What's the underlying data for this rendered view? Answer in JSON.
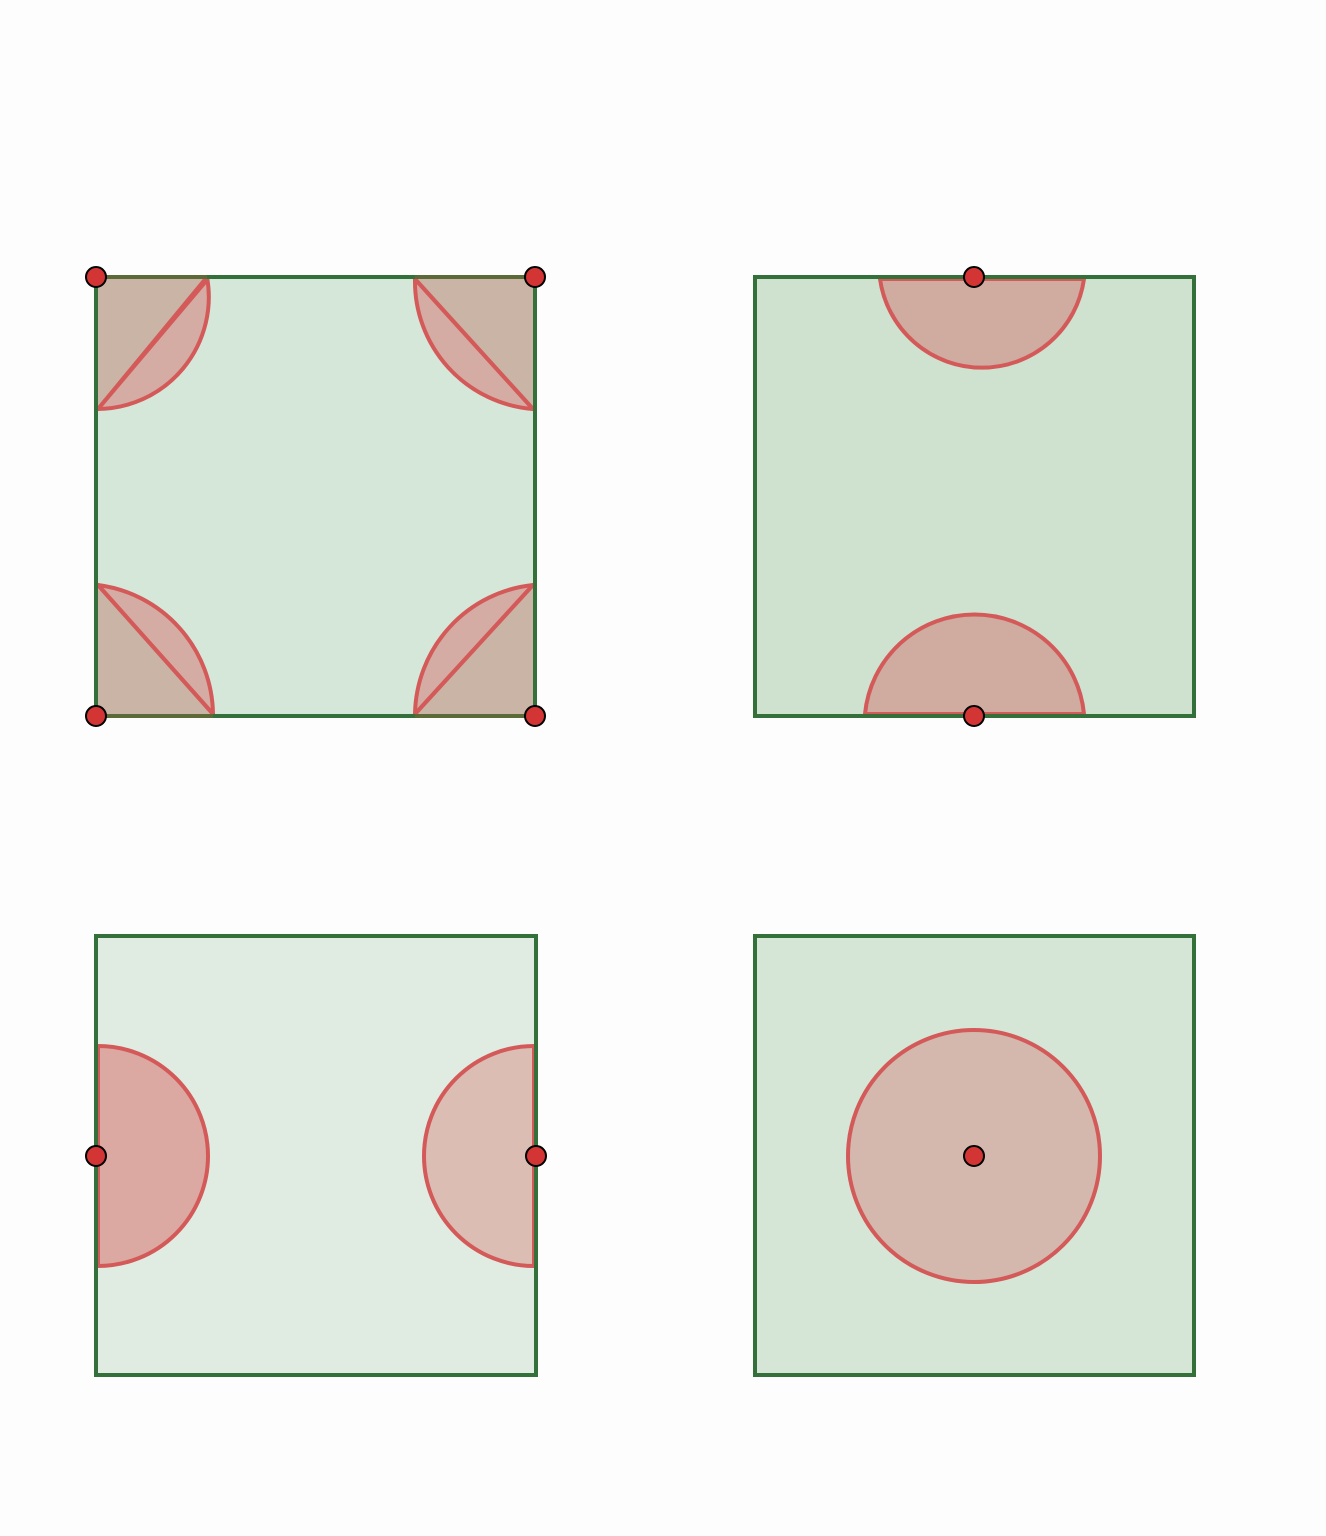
{
  "colors": {
    "background": "#fdfdfd",
    "square_stroke": "#33703a",
    "panel_fill_a": "#d5e7d8",
    "panel_fill_b": "#cfe1cf",
    "panel_fill_c": "#e0ece1",
    "panel_fill_d": "#d5e6d7",
    "region_stroke": "#d45a5a",
    "corner_fill": "#cab4a6",
    "region_fill": "#d0aba0",
    "point_fill": "#d33434",
    "point_stroke": "#000000"
  },
  "panels": [
    {
      "name": "corners-panel",
      "description_points": 4
    },
    {
      "name": "top-bottom-midpoints-panel",
      "description_points": 2
    },
    {
      "name": "left-right-midpoints-panel",
      "description_points": 2
    },
    {
      "name": "center-point-panel",
      "description_points": 1
    }
  ]
}
